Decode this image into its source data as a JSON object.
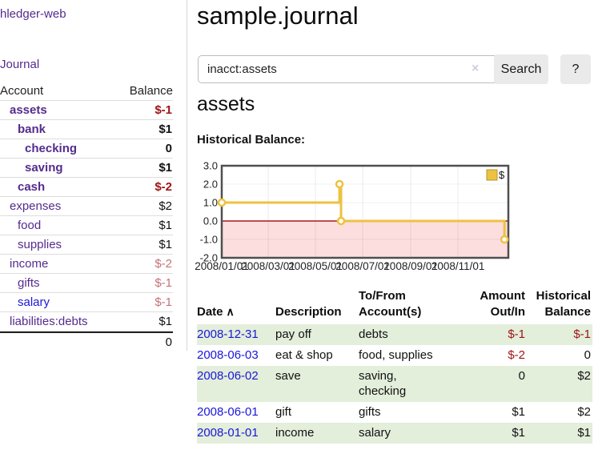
{
  "sidebar": {
    "brand": "hledger-web",
    "journal_link": "Journal",
    "table": {
      "headers": [
        "Account",
        "Balance"
      ],
      "accounts": [
        {
          "name": "assets",
          "level": 1,
          "bold": true,
          "balance": "$-1"
        },
        {
          "name": "bank",
          "level": 2,
          "bold": true,
          "balance": "$1"
        },
        {
          "name": "checking",
          "level": 3,
          "bold": true,
          "balance": "0"
        },
        {
          "name": "saving",
          "level": 3,
          "bold": true,
          "balance": "$1"
        },
        {
          "name": "cash",
          "level": 2,
          "bold": true,
          "balance": "$-2"
        },
        {
          "name": "expenses",
          "level": 1,
          "bold": false,
          "balance": "$2"
        },
        {
          "name": "food",
          "level": 2,
          "bold": false,
          "balance": "$1"
        },
        {
          "name": "supplies",
          "level": 2,
          "bold": false,
          "balance": "$1"
        },
        {
          "name": "income",
          "level": 1,
          "bold": false,
          "balance": "$-2"
        },
        {
          "name": "gifts",
          "level": 2,
          "bold": false,
          "balance": "$-1"
        },
        {
          "name": "salary",
          "level": 2,
          "bold": false,
          "balance": "$-1",
          "unvisited": true
        },
        {
          "name": "liabilities:debts",
          "level": 1,
          "bold": false,
          "balance": "$1"
        }
      ],
      "total": "0"
    }
  },
  "header": {
    "title": "sample.journal"
  },
  "search": {
    "value": "inacct:assets",
    "clear_icon": "×",
    "button_label": "Search",
    "help_label": "?"
  },
  "section": {
    "title": "assets",
    "chart_label": "Historical Balance:"
  },
  "chart_data": {
    "type": "line",
    "title": "Historical Balance",
    "step": true,
    "legend": [
      {
        "label": "$",
        "color": "#edc240"
      }
    ],
    "legend_position": "top-right",
    "grid": true,
    "xlim": [
      "2008-01-01",
      "2008-12-31"
    ],
    "ylim": [
      -2.0,
      3.0
    ],
    "y_ticks": [
      3.0,
      2.0,
      1.0,
      0.0,
      -1.0,
      -2.0
    ],
    "x_ticks": [
      "2008/01/01",
      "2008/03/01",
      "2008/05/01",
      "2008/07/01",
      "2008/09/01",
      "2008/11/01"
    ],
    "series": [
      {
        "name": "$",
        "color": "#edc240",
        "points": [
          [
            "2008-01-01",
            1.0
          ],
          [
            "2008-06-01",
            2.0
          ],
          [
            "2008-06-03",
            0.0
          ],
          [
            "2008-12-31",
            -1.0
          ]
        ]
      }
    ],
    "negative_region_color": "#fcdede",
    "zero_line_color": "#a21c1c",
    "gridline_color": "#e3e3e3",
    "border_color": "#4f4f4f"
  },
  "transactions": {
    "headers": [
      "Date",
      "Description",
      "To/From Account(s)",
      "Amount Out/In",
      "Historical Balance"
    ],
    "sort_icon": "∧",
    "rows": [
      {
        "date": "2008-12-31",
        "description": "pay off",
        "accounts": "debts",
        "amount": "$-1",
        "balance": "$-1",
        "shaded": true
      },
      {
        "date": "2008-06-03",
        "description": "eat & shop",
        "accounts": "food, supplies",
        "amount": "$-2",
        "balance": "0",
        "shaded": false
      },
      {
        "date": "2008-06-02",
        "description": "save",
        "accounts": "saving, checking",
        "amount": "0",
        "balance": "$2",
        "shaded": true
      },
      {
        "date": "2008-06-01",
        "description": "gift",
        "accounts": "gifts",
        "amount": "$1",
        "balance": "$2",
        "shaded": false
      },
      {
        "date": "2008-01-01",
        "description": "income",
        "accounts": "salary",
        "amount": "$1",
        "balance": "$1",
        "shaded": true
      }
    ]
  }
}
